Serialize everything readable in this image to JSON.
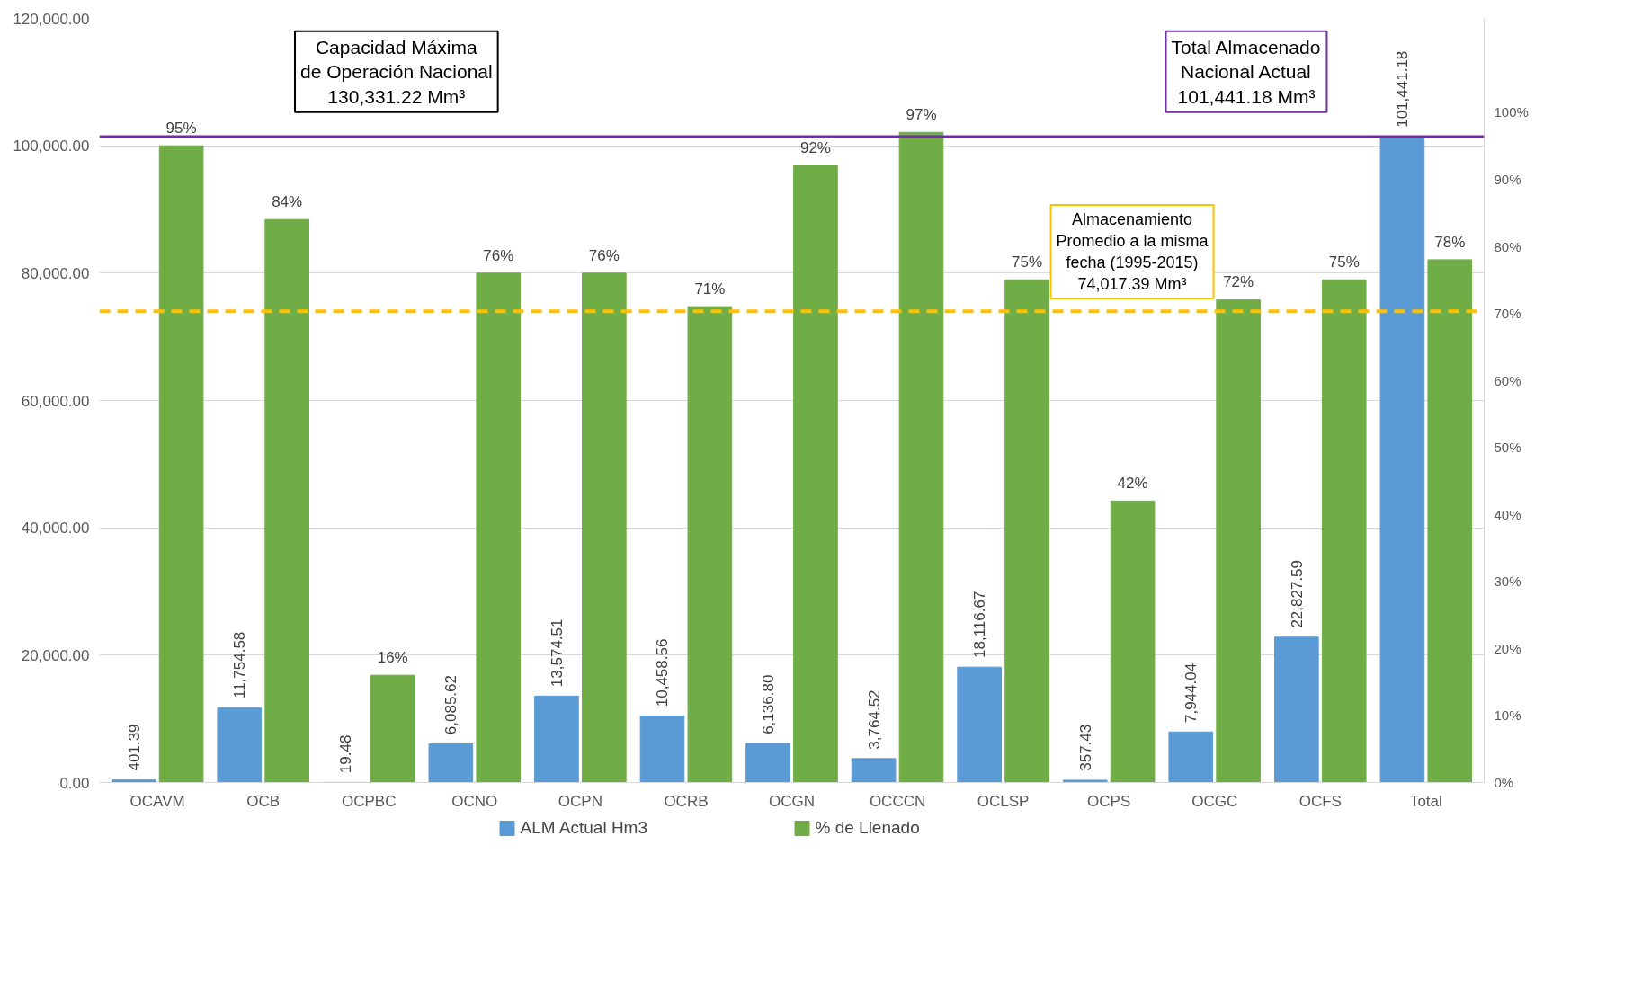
{
  "chart_data": {
    "type": "bar",
    "categories": [
      "OCAVM",
      "OCB",
      "OCPBC",
      "OCNO",
      "OCPN",
      "OCRB",
      "OCGN",
      "OCCCN",
      "OCLSP",
      "OCPS",
      "OCGC",
      "OCFS",
      "Total"
    ],
    "series": [
      {
        "name": "ALM Actual Hm3",
        "color": "#5b9bd5",
        "values": [
          401.39,
          11754.58,
          19.48,
          6085.62,
          13574.51,
          10458.56,
          6136.8,
          3764.52,
          18116.67,
          357.43,
          7944.04,
          22827.59,
          101441.18
        ],
        "value_labels": [
          "401.39",
          "11,754.58",
          "19.48",
          "6,085.62",
          "13,574.51",
          "10,458.56",
          "6,136.80",
          "3,764.52",
          "18,116.67",
          "357.43",
          "7,944.04",
          "22,827.59",
          "101,441.18"
        ]
      },
      {
        "name": "% de Llenado",
        "color": "#70ad47",
        "axis": "y2",
        "values": [
          95,
          84,
          16,
          76,
          76,
          71,
          92,
          97,
          75,
          42,
          72,
          75,
          78
        ],
        "value_labels": [
          "95%",
          "84%",
          "16%",
          "76%",
          "76%",
          "71%",
          "92%",
          "97%",
          "75%",
          "42%",
          "72%",
          "75%",
          "78%"
        ]
      }
    ],
    "ylim": [
      0,
      120000
    ],
    "yticks": [
      {
        "value": 0,
        "label": "0.00"
      },
      {
        "value": 20000,
        "label": "20,000.00"
      },
      {
        "value": 40000,
        "label": "40,000.00"
      },
      {
        "value": 60000,
        "label": "60,000.00"
      },
      {
        "value": 80000,
        "label": "80,000.00"
      },
      {
        "value": 100000,
        "label": "100,000.00"
      },
      {
        "value": 120000,
        "label": "120,000.00"
      }
    ],
    "y2lim": [
      0,
      114
    ],
    "y2ticks": [
      {
        "value": 0,
        "label": "0%"
      },
      {
        "value": 10,
        "label": "10%"
      },
      {
        "value": 20,
        "label": "20%"
      },
      {
        "value": 30,
        "label": "30%"
      },
      {
        "value": 40,
        "label": "40%"
      },
      {
        "value": 50,
        "label": "50%"
      },
      {
        "value": 60,
        "label": "60%"
      },
      {
        "value": 70,
        "label": "70%"
      },
      {
        "value": 80,
        "label": "80%"
      },
      {
        "value": 90,
        "label": "90%"
      },
      {
        "value": 100,
        "label": "100%"
      }
    ],
    "ref_lines": [
      {
        "axis": "y",
        "value": 101441.18,
        "label": "Total Almacenado\nNacional Actual\n101,441.18 Mm³",
        "color": "#7030a0",
        "line_style": "solid"
      },
      {
        "axis": "y",
        "value": 74017.39,
        "label": "Almacenamiento\nPromedio a la misma\nfecha (1995-2015)\n74,017.39 Mm³",
        "color": "#ffc000",
        "line_style": "dashed"
      }
    ],
    "annotations": [
      "Capacidad Máxima\nde Operación Nacional\n130,331.22 Mm³"
    ],
    "grid": "y",
    "legend": "bottom"
  }
}
